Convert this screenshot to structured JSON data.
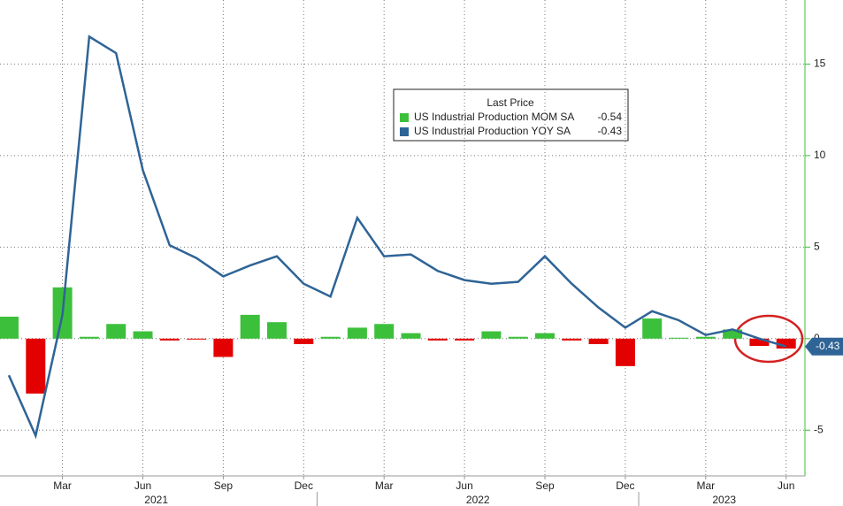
{
  "chart_data": {
    "type": "bar_line",
    "categories": [
      null,
      null,
      "Mar",
      null,
      null,
      "Jun",
      null,
      null,
      "Sep",
      null,
      null,
      "Dec",
      null,
      null,
      "Mar",
      null,
      null,
      "Jun",
      null,
      null,
      "Sep",
      null,
      null,
      "Dec",
      null,
      null,
      "Mar",
      null,
      null,
      "Jun"
    ],
    "year_labels": [
      "2021",
      "2022",
      "2023"
    ],
    "series": [
      {
        "name": "US Industrial Production MOM SA",
        "kind": "bar",
        "color": "#3cc03c",
        "negative_color": "#e30000",
        "last_value": -0.54,
        "values": [
          1.2,
          -3.0,
          2.8,
          0.1,
          0.8,
          0.4,
          -0.1,
          -0.05,
          -1.0,
          1.3,
          0.9,
          -0.3,
          0.1,
          0.6,
          0.8,
          0.3,
          -0.1,
          -0.1,
          0.4,
          0.1,
          0.3,
          -0.1,
          -0.3,
          -1.5,
          1.1,
          0.05,
          0.1,
          0.5,
          -0.4,
          -0.54
        ]
      },
      {
        "name": "US Industrial Production YOY SA",
        "kind": "line",
        "color": "#2f6496",
        "last_value": -0.43,
        "values": [
          -2.0,
          -5.3,
          1.3,
          16.5,
          15.6,
          9.2,
          5.1,
          4.4,
          3.4,
          4.0,
          4.5,
          3.0,
          2.3,
          6.6,
          4.5,
          4.6,
          3.7,
          3.2,
          3.0,
          3.1,
          4.5,
          3.0,
          1.7,
          0.6,
          1.5,
          1.0,
          0.2,
          0.5,
          0.0,
          -0.43
        ]
      }
    ],
    "legend_title": "Last Price",
    "ylim": [
      -7.5,
      18.5
    ],
    "yticks": [
      -5,
      0,
      5,
      10,
      15
    ],
    "grid": true
  }
}
